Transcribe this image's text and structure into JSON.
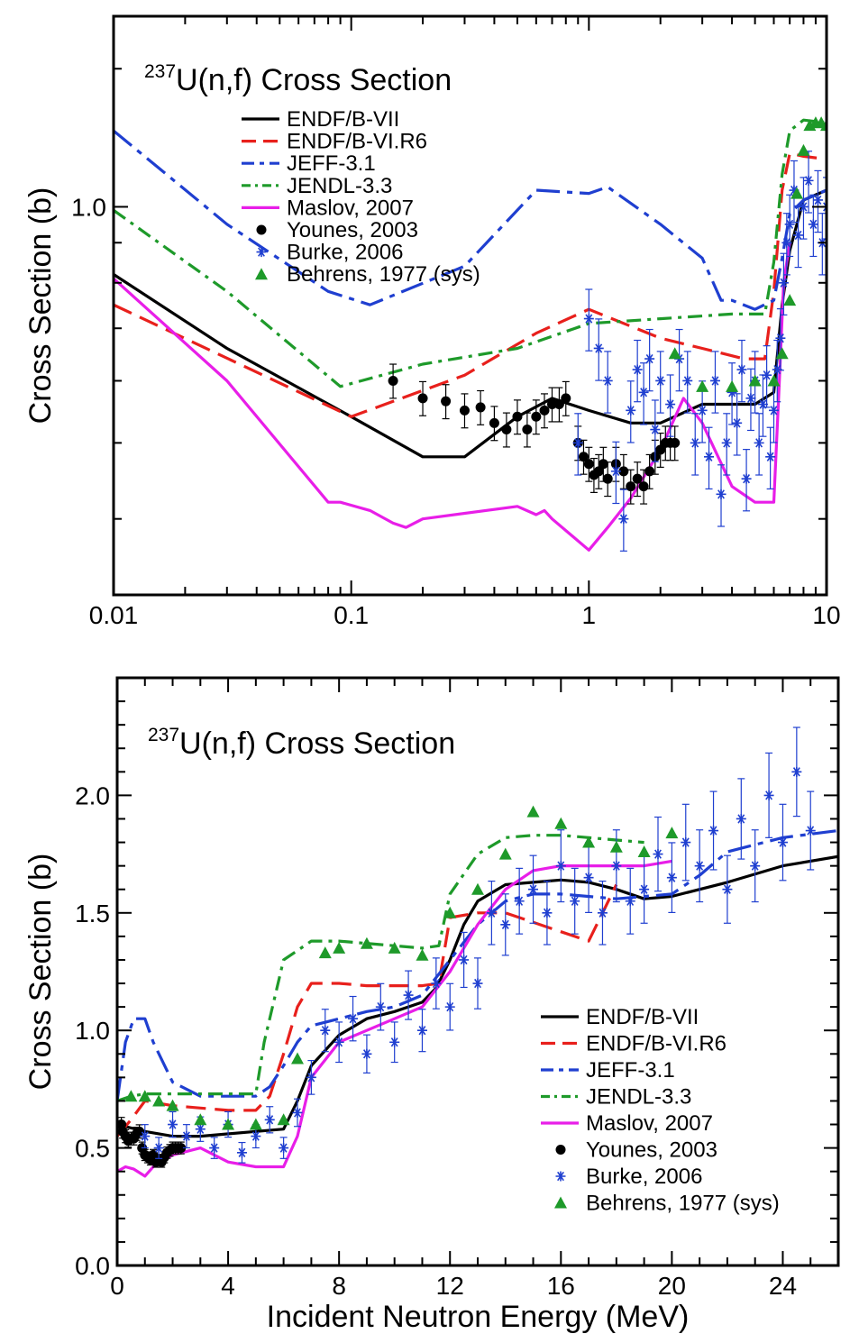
{
  "chart_data": [
    {
      "type": "line",
      "title_sup": "237",
      "title": "U(n,f) Cross Section",
      "xlabel": "",
      "ylabel": "Cross Section (b)",
      "xscale": "log",
      "yscale": "log",
      "xlim": [
        0.01,
        10
      ],
      "ylim": [
        0.32,
        1.75
      ],
      "xticks": [
        0.01,
        0.1,
        1,
        10
      ],
      "xtick_labels": [
        "0.01",
        "0.1",
        "1",
        "10"
      ],
      "yticks": [
        1.0
      ],
      "ytick_labels": [
        "1.0"
      ],
      "legend_position": "top-left",
      "series": [
        {
          "name": "ENDF/B-VII",
          "color": "#000000",
          "style": "solid",
          "x": [
            0.01,
            0.03,
            0.1,
            0.2,
            0.3,
            0.5,
            0.7,
            1.0,
            1.5,
            2.0,
            3.0,
            5.0,
            6.0,
            6.5,
            7.0,
            8.0,
            10.0
          ],
          "y": [
            0.82,
            0.66,
            0.54,
            0.48,
            0.48,
            0.54,
            0.57,
            0.55,
            0.53,
            0.53,
            0.56,
            0.56,
            0.58,
            0.75,
            0.88,
            1.02,
            1.05
          ]
        },
        {
          "name": "ENDF/B-VI.R6",
          "color": "#e8201c",
          "style": "dash",
          "x": [
            0.01,
            0.1,
            0.3,
            0.6,
            1.0,
            2.0,
            3.0,
            4.5,
            5.5,
            6.0,
            6.5,
            7.0,
            8.0,
            10.0
          ],
          "y": [
            0.75,
            0.54,
            0.61,
            0.69,
            0.74,
            0.68,
            0.66,
            0.64,
            0.64,
            0.78,
            1.05,
            1.17,
            1.16,
            1.15
          ]
        },
        {
          "name": "JEFF-3.1",
          "color": "#1f3fd0",
          "style": "dashdot-long",
          "x": [
            0.01,
            0.03,
            0.08,
            0.12,
            0.3,
            0.6,
            1.0,
            1.2,
            2.0,
            3.0,
            3.6,
            4.0,
            5.0,
            6.0,
            6.5,
            7.0,
            8.0,
            10.0
          ],
          "y": [
            1.25,
            0.95,
            0.78,
            0.75,
            0.84,
            1.05,
            1.04,
            1.06,
            0.95,
            0.86,
            0.76,
            0.76,
            0.74,
            0.76,
            0.86,
            0.98,
            1.02,
            1.05
          ]
        },
        {
          "name": "JENDL-3.3",
          "color": "#1e9a2a",
          "style": "dashdot",
          "x": [
            0.01,
            0.03,
            0.09,
            0.2,
            0.5,
            1.0,
            2.0,
            4.0,
            5.5,
            6.0,
            6.5,
            7.0,
            8.0,
            10.0
          ],
          "y": [
            0.99,
            0.78,
            0.59,
            0.63,
            0.66,
            0.71,
            0.72,
            0.73,
            0.73,
            0.85,
            1.1,
            1.25,
            1.29,
            1.28
          ]
        },
        {
          "name": "Maslov, 2007",
          "color": "#e81ee8",
          "style": "solid",
          "x": [
            0.01,
            0.03,
            0.08,
            0.09,
            0.12,
            0.15,
            0.17,
            0.2,
            0.5,
            0.6,
            0.65,
            0.7,
            1.0,
            1.2,
            1.5,
            2.0,
            2.5,
            3.0,
            4.0,
            5.0,
            6.0,
            6.3,
            6.6,
            7.0
          ],
          "y": [
            0.81,
            0.6,
            0.42,
            0.42,
            0.41,
            0.395,
            0.39,
            0.4,
            0.415,
            0.405,
            0.41,
            0.4,
            0.365,
            0.39,
            0.425,
            0.49,
            0.57,
            0.53,
            0.44,
            0.42,
            0.42,
            0.58,
            0.8,
            0.9
          ]
        },
        {
          "name": "Younes, 2003",
          "color": "#000000",
          "style": "marker-circle",
          "x": [
            0.15,
            0.2,
            0.25,
            0.3,
            0.35,
            0.4,
            0.45,
            0.5,
            0.55,
            0.6,
            0.65,
            0.7,
            0.75,
            0.8,
            0.9,
            0.95,
            1.0,
            1.05,
            1.1,
            1.15,
            1.2,
            1.3,
            1.4,
            1.5,
            1.6,
            1.7,
            1.8,
            1.9,
            2.0,
            2.1,
            2.2,
            2.3
          ],
          "y": [
            0.6,
            0.57,
            0.565,
            0.55,
            0.555,
            0.53,
            0.52,
            0.54,
            0.52,
            0.54,
            0.55,
            0.56,
            0.56,
            0.57,
            0.5,
            0.48,
            0.47,
            0.455,
            0.46,
            0.47,
            0.45,
            0.47,
            0.46,
            0.44,
            0.45,
            0.44,
            0.46,
            0.48,
            0.49,
            0.5,
            0.5,
            0.5
          ]
        },
        {
          "name": "Burke, 2006",
          "color": "#1f3fd0",
          "style": "marker-asterisk",
          "x": [
            0.9,
            1.0,
            1.1,
            1.2,
            1.3,
            1.4,
            1.5,
            1.6,
            1.7,
            1.8,
            1.9,
            2.0,
            2.2,
            2.4,
            2.6,
            2.8,
            3.0,
            3.2,
            3.4,
            3.6,
            3.8,
            4.0,
            4.2,
            4.4,
            4.6,
            4.8,
            5.0,
            5.2,
            5.4,
            5.6,
            5.8,
            6.0,
            6.2,
            6.4,
            6.6,
            6.8,
            7.0,
            7.3,
            7.6,
            8.0,
            8.4,
            8.8,
            9.2,
            9.6,
            10.0
          ],
          "y": [
            0.5,
            0.72,
            0.66,
            0.6,
            0.46,
            0.4,
            0.55,
            0.62,
            0.58,
            0.64,
            0.52,
            0.6,
            0.56,
            0.64,
            0.6,
            0.5,
            0.55,
            0.48,
            0.6,
            0.43,
            0.5,
            0.58,
            0.53,
            0.62,
            0.45,
            0.57,
            0.6,
            0.5,
            0.56,
            0.61,
            0.48,
            0.55,
            0.62,
            0.68,
            0.8,
            0.9,
            0.95,
            1.05,
            0.92,
            1.0,
            1.08,
            0.95,
            1.02,
            0.9,
            1.0
          ]
        },
        {
          "name": "Behrens, 1977 (sys)",
          "color": "#1e9a2a",
          "style": "marker-triangle",
          "x": [
            2.3,
            3.0,
            4.0,
            5.0,
            6.0,
            6.5,
            7.0,
            7.5,
            8.0,
            8.5,
            9.0,
            9.5,
            10.0
          ],
          "y": [
            0.65,
            0.59,
            0.59,
            0.6,
            0.6,
            0.65,
            0.76,
            1.04,
            1.18,
            1.27,
            1.28,
            1.28,
            1.27
          ]
        }
      ]
    },
    {
      "type": "line",
      "title_sup": "237",
      "title": "U(n,f) Cross Section",
      "xlabel": "Incident Neutron Energy (MeV)",
      "ylabel": "Cross Section (b)",
      "xscale": "linear",
      "yscale": "linear",
      "xlim": [
        0,
        26
      ],
      "ylim": [
        0,
        2.5
      ],
      "xticks": [
        0,
        4,
        8,
        12,
        16,
        20,
        24
      ],
      "xtick_labels": [
        "0",
        "4",
        "8",
        "12",
        "16",
        "20",
        "24"
      ],
      "yticks": [
        0.0,
        0.5,
        1.0,
        1.5,
        2.0
      ],
      "ytick_labels": [
        "0.0",
        "0.5",
        "1.0",
        "1.5",
        "2.0"
      ],
      "legend_position": "bottom-right",
      "series": [
        {
          "name": "ENDF/B-VII",
          "color": "#000000",
          "style": "solid",
          "x": [
            0,
            1,
            2,
            3,
            5,
            6,
            6.5,
            7,
            8,
            9,
            10,
            11,
            11.5,
            12,
            12.5,
            13,
            14,
            15,
            16,
            17,
            18,
            19,
            20,
            22,
            24,
            26
          ],
          "y": [
            0.6,
            0.57,
            0.55,
            0.55,
            0.57,
            0.58,
            0.7,
            0.85,
            0.98,
            1.05,
            1.08,
            1.12,
            1.18,
            1.3,
            1.45,
            1.55,
            1.62,
            1.63,
            1.64,
            1.63,
            1.6,
            1.56,
            1.57,
            1.63,
            1.7,
            1.74
          ]
        },
        {
          "name": "ENDF/B-VI.R6",
          "color": "#e8201c",
          "style": "dash",
          "x": [
            0,
            0.5,
            1,
            2,
            3,
            4,
            5,
            5.5,
            6,
            6.5,
            7,
            8,
            9,
            10,
            11,
            11.6,
            12,
            13,
            14,
            15,
            16,
            17,
            17.5,
            18
          ],
          "y": [
            0.55,
            0.62,
            0.7,
            0.68,
            0.67,
            0.66,
            0.66,
            0.72,
            0.9,
            1.1,
            1.2,
            1.2,
            1.19,
            1.19,
            1.19,
            1.2,
            1.48,
            1.5,
            1.5,
            1.46,
            1.42,
            1.38,
            1.5,
            1.62
          ]
        },
        {
          "name": "JEFF-3.1",
          "color": "#1f3fd0",
          "style": "dashdot-long",
          "x": [
            0,
            0.3,
            0.6,
            1.0,
            1.3,
            2,
            3,
            4,
            5,
            5.5,
            6,
            6.5,
            7,
            8,
            9,
            10,
            11,
            12,
            13,
            14,
            15,
            16,
            18,
            20,
            21,
            22,
            24,
            26
          ],
          "y": [
            0.7,
            0.95,
            1.05,
            1.05,
            0.95,
            0.78,
            0.72,
            0.72,
            0.72,
            0.76,
            0.85,
            0.95,
            1.02,
            1.05,
            1.08,
            1.1,
            1.15,
            1.3,
            1.45,
            1.55,
            1.58,
            1.58,
            1.56,
            1.58,
            1.66,
            1.76,
            1.82,
            1.85
          ]
        },
        {
          "name": "JENDL-3.3",
          "color": "#1e9a2a",
          "style": "dashdot",
          "x": [
            0,
            0.5,
            1,
            2,
            3,
            4,
            5,
            5.3,
            6,
            7,
            8,
            9,
            10,
            11,
            11.6,
            12,
            13,
            14,
            15,
            16,
            17,
            18,
            19
          ],
          "y": [
            0.7,
            0.72,
            0.73,
            0.73,
            0.73,
            0.73,
            0.73,
            0.95,
            1.3,
            1.38,
            1.38,
            1.37,
            1.36,
            1.35,
            1.36,
            1.58,
            1.75,
            1.82,
            1.83,
            1.83,
            1.82,
            1.81,
            1.8
          ]
        },
        {
          "name": "Maslov, 2007",
          "color": "#e81ee8",
          "style": "solid",
          "x": [
            0,
            0.3,
            0.6,
            1.0,
            1.3,
            2,
            3,
            4,
            5,
            6,
            6.5,
            7,
            8,
            9,
            10,
            11,
            12,
            13,
            14,
            15,
            16,
            17,
            18,
            19,
            20
          ],
          "y": [
            0.4,
            0.42,
            0.41,
            0.38,
            0.42,
            0.47,
            0.5,
            0.44,
            0.42,
            0.42,
            0.55,
            0.8,
            0.95,
            1.0,
            1.05,
            1.1,
            1.25,
            1.45,
            1.6,
            1.68,
            1.7,
            1.7,
            1.7,
            1.7,
            1.72
          ]
        },
        {
          "name": "Younes, 2003",
          "color": "#000000",
          "style": "marker-circle",
          "x": [
            0.15,
            0.2,
            0.3,
            0.4,
            0.5,
            0.6,
            0.7,
            0.8,
            0.9,
            1.0,
            1.1,
            1.2,
            1.3,
            1.4,
            1.5,
            1.6,
            1.7,
            1.8,
            1.9,
            2.0,
            2.1,
            2.2,
            2.3
          ],
          "y": [
            0.6,
            0.57,
            0.55,
            0.53,
            0.54,
            0.54,
            0.56,
            0.57,
            0.5,
            0.47,
            0.46,
            0.45,
            0.47,
            0.44,
            0.45,
            0.44,
            0.46,
            0.48,
            0.49,
            0.5,
            0.5,
            0.5,
            0.5
          ]
        },
        {
          "name": "Burke, 2006",
          "color": "#1f3fd0",
          "style": "marker-asterisk",
          "x": [
            1,
            1.5,
            2,
            2.5,
            3,
            3.5,
            4,
            4.5,
            5,
            5.5,
            6,
            6.5,
            7,
            7.5,
            8,
            8.5,
            9,
            9.5,
            10,
            10.5,
            11,
            11.5,
            12,
            12.5,
            13,
            13.5,
            14,
            14.5,
            15,
            15.5,
            16,
            16.5,
            17,
            17.5,
            18,
            18.5,
            19,
            19.5,
            20,
            20.5,
            21,
            21.5,
            22,
            22.5,
            23,
            23.5,
            24,
            24.5,
            25
          ],
          "y": [
            0.55,
            0.5,
            0.6,
            0.55,
            0.58,
            0.5,
            0.6,
            0.48,
            0.55,
            0.62,
            0.5,
            0.65,
            0.8,
            1.0,
            0.95,
            1.05,
            0.9,
            1.1,
            0.95,
            1.15,
            1.0,
            1.2,
            1.1,
            1.3,
            1.2,
            1.5,
            1.45,
            1.55,
            1.6,
            1.5,
            1.7,
            1.55,
            1.65,
            1.5,
            1.7,
            1.55,
            1.6,
            1.75,
            1.65,
            1.8,
            1.7,
            1.85,
            1.6,
            1.9,
            1.7,
            2.0,
            1.8,
            2.1,
            1.85
          ]
        },
        {
          "name": "Behrens, 1977 (sys)",
          "color": "#1e9a2a",
          "style": "marker-triangle",
          "x": [
            0.5,
            1.0,
            1.5,
            2.0,
            3.0,
            4.0,
            5.0,
            6.0,
            6.5,
            7.5,
            8.0,
            9.0,
            10.0,
            11.0,
            12.0,
            13.0,
            14.0,
            15.0,
            16.0,
            17.0,
            18.0,
            19.0,
            20.0
          ],
          "y": [
            0.72,
            0.72,
            0.7,
            0.68,
            0.62,
            0.6,
            0.6,
            0.62,
            0.88,
            1.33,
            1.35,
            1.37,
            1.35,
            1.32,
            1.5,
            1.6,
            1.75,
            1.93,
            1.88,
            1.8,
            1.78,
            1.76,
            1.84
          ]
        }
      ]
    }
  ]
}
